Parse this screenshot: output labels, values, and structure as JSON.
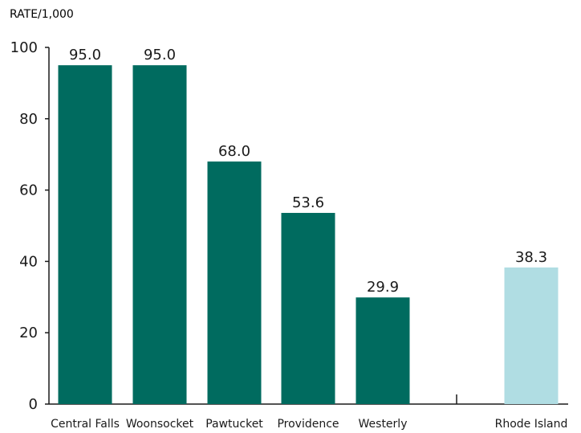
{
  "chart_data": {
    "type": "bar",
    "title": "",
    "xlabel": "",
    "ylabel": "RATE/1,000",
    "ylim": [
      0,
      100
    ],
    "yticks": [
      0,
      20,
      40,
      60,
      80,
      100
    ],
    "grid": false,
    "categories": [
      "Central Falls",
      "Woonsocket",
      "Pawtucket",
      "Providence",
      "Westerly",
      "Rhode Island"
    ],
    "values": [
      95.0,
      95.0,
      68.0,
      53.6,
      29.9,
      38.3
    ],
    "value_labels": [
      "95.0",
      "95.0",
      "68.0",
      "53.6",
      "29.9",
      "38.3"
    ],
    "colors": [
      "#006b5f",
      "#006b5f",
      "#006b5f",
      "#006b5f",
      "#006b5f",
      "#b0dde3"
    ],
    "axis_color": "#1a1a1a"
  }
}
